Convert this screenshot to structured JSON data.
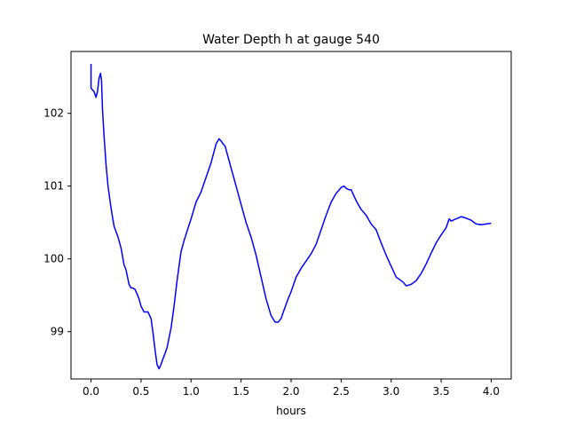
{
  "chart_data": {
    "type": "line",
    "title": "Water Depth h at gauge 540",
    "xlabel": "hours",
    "ylabel": "",
    "xlim": [
      -0.2,
      4.2
    ],
    "ylim": [
      98.35,
      102.85
    ],
    "xticks": [
      0.0,
      0.5,
      1.0,
      1.5,
      2.0,
      2.5,
      3.0,
      3.5,
      4.0
    ],
    "xtick_labels": [
      "0.0",
      "0.5",
      "1.0",
      "1.5",
      "2.0",
      "2.5",
      "3.0",
      "3.5",
      "4.0"
    ],
    "yticks": [
      99,
      100,
      101,
      102
    ],
    "ytick_labels": [
      "99",
      "100",
      "101",
      "102"
    ],
    "grid": false,
    "legend": "none",
    "series": [
      {
        "color": "#0000ff",
        "x": [
          0.0,
          0.0,
          0.01,
          0.03,
          0.05,
          0.065,
          0.08,
          0.095,
          0.105,
          0.115,
          0.13,
          0.15,
          0.17,
          0.2,
          0.23,
          0.27,
          0.3,
          0.33,
          0.35,
          0.38,
          0.4,
          0.42,
          0.44,
          0.46,
          0.48,
          0.5,
          0.53,
          0.55,
          0.57,
          0.6,
          0.62,
          0.64,
          0.66,
          0.68,
          0.7,
          0.72,
          0.74,
          0.76,
          0.8,
          0.83,
          0.86,
          0.9,
          0.93,
          0.96,
          1.0,
          1.05,
          1.1,
          1.15,
          1.2,
          1.25,
          1.28,
          1.3,
          1.32,
          1.34,
          1.36,
          1.38,
          1.4,
          1.45,
          1.5,
          1.55,
          1.6,
          1.65,
          1.7,
          1.75,
          1.8,
          1.84,
          1.87,
          1.9,
          1.93,
          1.97,
          2.0,
          2.05,
          2.1,
          2.15,
          2.2,
          2.25,
          2.3,
          2.35,
          2.4,
          2.45,
          2.5,
          2.53,
          2.55,
          2.58,
          2.6,
          2.65,
          2.7,
          2.75,
          2.8,
          2.85,
          2.9,
          2.95,
          3.0,
          3.05,
          3.1,
          3.12,
          3.15,
          3.2,
          3.25,
          3.3,
          3.35,
          3.4,
          3.45,
          3.5,
          3.55,
          3.58,
          3.6,
          3.65,
          3.7,
          3.75,
          3.8,
          3.85,
          3.9,
          3.95,
          4.0
        ],
        "y": [
          102.68,
          102.35,
          102.33,
          102.3,
          102.22,
          102.3,
          102.48,
          102.55,
          102.45,
          102.05,
          101.7,
          101.3,
          101.0,
          100.7,
          100.45,
          100.3,
          100.15,
          99.92,
          99.85,
          99.65,
          99.6,
          99.6,
          99.58,
          99.52,
          99.45,
          99.35,
          99.27,
          99.27,
          99.27,
          99.18,
          98.98,
          98.75,
          98.55,
          98.49,
          98.55,
          98.63,
          98.7,
          98.78,
          99.05,
          99.35,
          99.7,
          100.1,
          100.25,
          100.38,
          100.55,
          100.78,
          100.92,
          101.12,
          101.32,
          101.58,
          101.65,
          101.62,
          101.58,
          101.55,
          101.45,
          101.35,
          101.25,
          101.0,
          100.75,
          100.5,
          100.3,
          100.05,
          99.75,
          99.45,
          99.22,
          99.13,
          99.13,
          99.18,
          99.3,
          99.45,
          99.55,
          99.75,
          99.87,
          99.97,
          100.07,
          100.2,
          100.4,
          100.6,
          100.78,
          100.9,
          100.98,
          101.0,
          100.97,
          100.95,
          100.95,
          100.8,
          100.68,
          100.6,
          100.48,
          100.4,
          100.22,
          100.05,
          99.9,
          99.75,
          99.7,
          99.68,
          99.63,
          99.65,
          99.7,
          99.8,
          99.93,
          100.08,
          100.22,
          100.33,
          100.43,
          100.55,
          100.52,
          100.55,
          100.58,
          100.56,
          100.53,
          100.48,
          100.47,
          100.48,
          100.49
        ]
      }
    ]
  }
}
